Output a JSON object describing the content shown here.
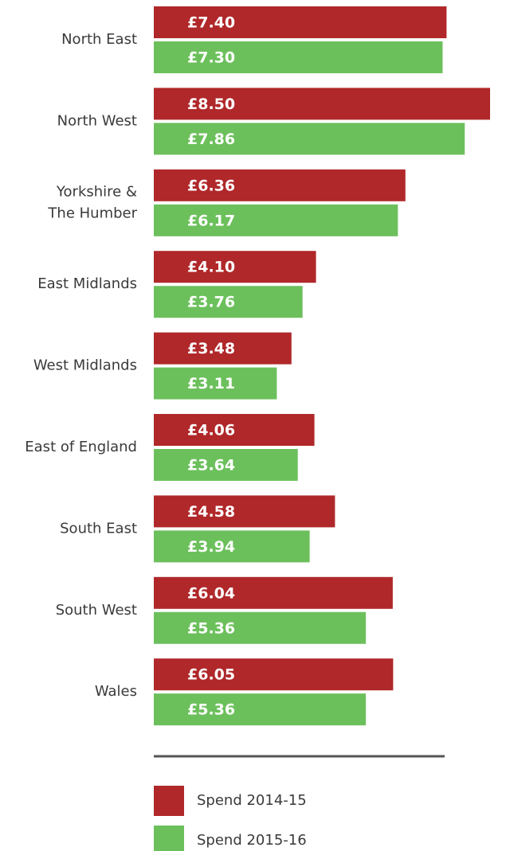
{
  "chart_data": {
    "type": "bar",
    "orientation": "horizontal",
    "categories": [
      "North East",
      "North West",
      "Yorkshire &\nThe Humber",
      "East Midlands",
      "West Midlands",
      "East of England",
      "South East",
      "South West",
      "Wales"
    ],
    "series": [
      {
        "name": "Spend 2014-15",
        "color": "#b0282a",
        "values": [
          7.4,
          8.5,
          6.36,
          4.1,
          3.48,
          4.06,
          4.58,
          6.04,
          6.05
        ],
        "value_labels": [
          "£7.40",
          "£8.50",
          "£6.36",
          "£4.10",
          "£3.48",
          "£4.06",
          "£4.58",
          "£6.04",
          "£6.05"
        ]
      },
      {
        "name": "Spend 2015-16",
        "color": "#6cc05c",
        "values": [
          7.3,
          7.86,
          6.17,
          3.76,
          3.11,
          3.64,
          3.94,
          5.36,
          5.36
        ],
        "value_labels": [
          "£7.30",
          "£7.86",
          "£6.17",
          "£3.76",
          "£3.11",
          "£3.64",
          "£3.94",
          "£5.36",
          "£5.36"
        ]
      }
    ],
    "xlim": [
      0,
      8.5
    ],
    "legend": "bottom"
  }
}
